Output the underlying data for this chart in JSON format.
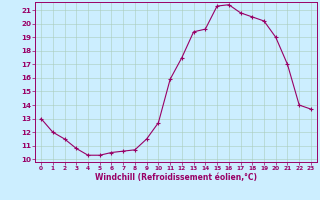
{
  "x": [
    0,
    1,
    2,
    3,
    4,
    5,
    6,
    7,
    8,
    9,
    10,
    11,
    12,
    13,
    14,
    15,
    16,
    17,
    18,
    19,
    20,
    21,
    22,
    23
  ],
  "y": [
    13.0,
    12.0,
    11.5,
    10.8,
    10.3,
    10.3,
    10.5,
    10.6,
    10.7,
    11.5,
    12.7,
    15.9,
    17.5,
    19.4,
    19.6,
    21.3,
    21.4,
    20.8,
    20.5,
    20.2,
    19.0,
    17.0,
    14.0,
    13.7
  ],
  "xlabel": "Windchill (Refroidissement éolien,°C)",
  "xlim": [
    -0.5,
    23.5
  ],
  "ylim": [
    9.8,
    21.6
  ],
  "yticks": [
    10,
    11,
    12,
    13,
    14,
    15,
    16,
    17,
    18,
    19,
    20,
    21
  ],
  "xticks": [
    0,
    1,
    2,
    3,
    4,
    5,
    6,
    7,
    8,
    9,
    10,
    11,
    12,
    13,
    14,
    15,
    16,
    17,
    18,
    19,
    20,
    21,
    22,
    23
  ],
  "line_color": "#990066",
  "marker_color": "#990066",
  "bg_color": "#cceeff",
  "grid_color": "#aaccbb",
  "axis_label_color": "#990066",
  "tick_color": "#990066",
  "spine_color": "#990066"
}
